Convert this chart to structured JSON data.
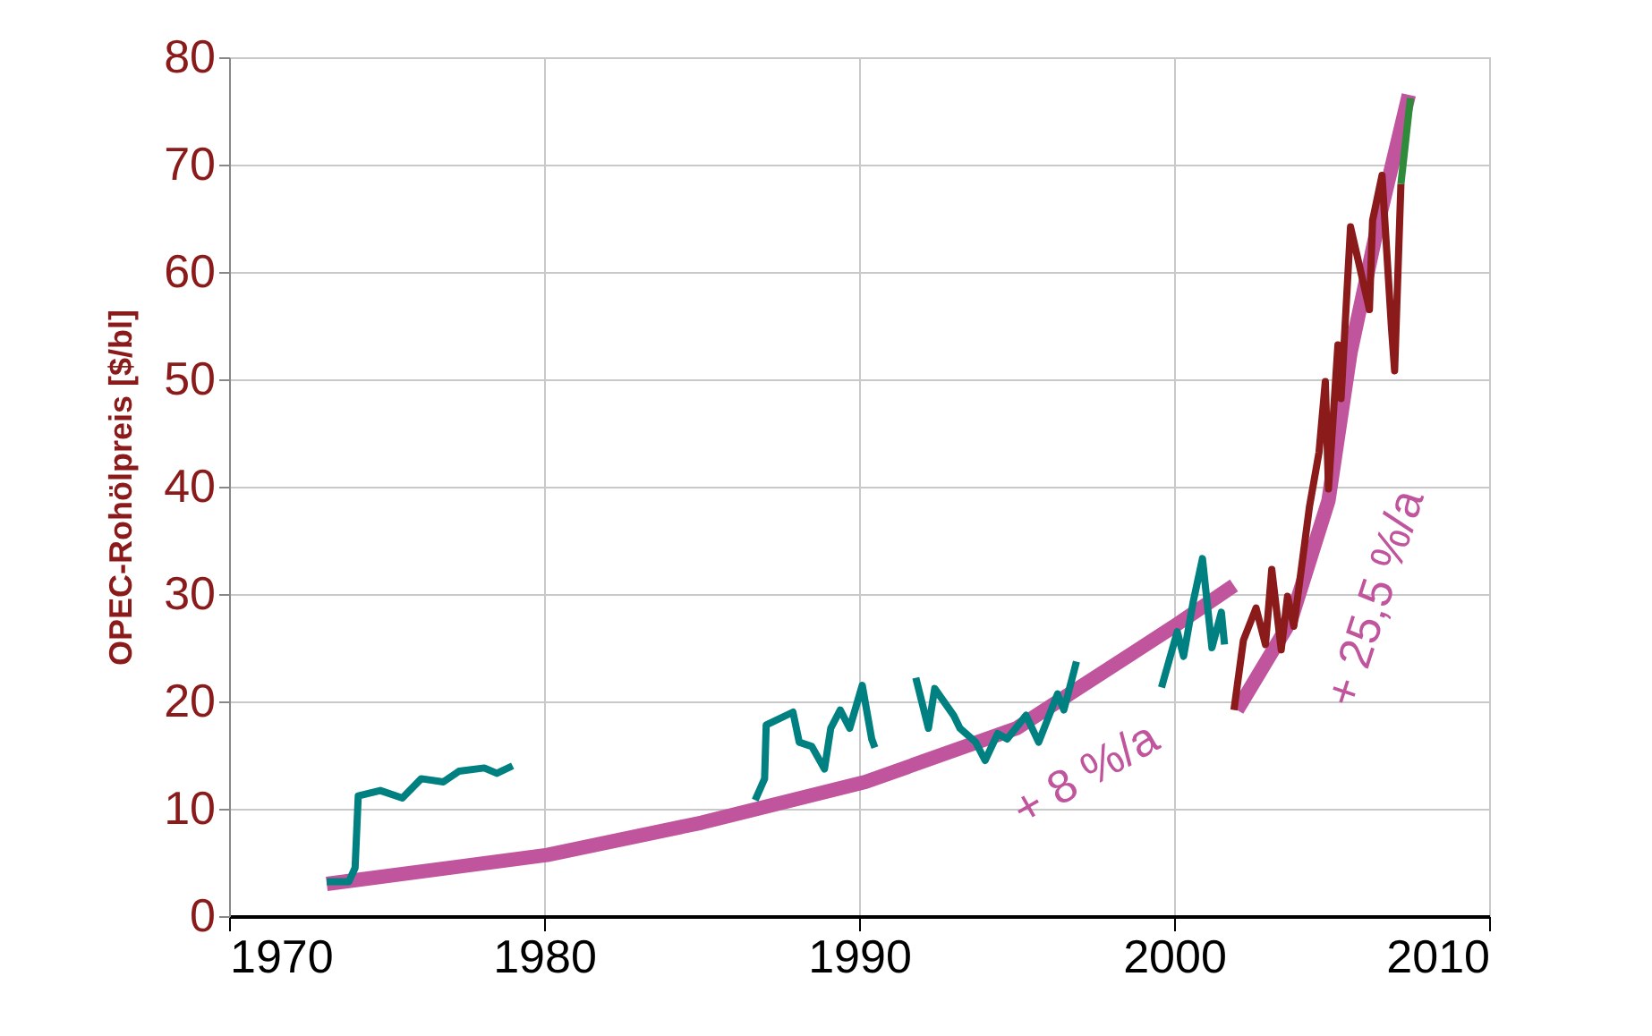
{
  "chart_data": {
    "type": "line",
    "ylabel": "OPEC-Rohölpreis [$/bl]",
    "xlim": [
      1970,
      2010
    ],
    "ylim": [
      0,
      80
    ],
    "xticks": [
      1970,
      1980,
      1990,
      2000,
      2010
    ],
    "yticks": [
      0,
      10,
      20,
      30,
      40,
      50,
      60,
      70,
      80
    ],
    "grid": true,
    "series": [
      {
        "color": "#c0559e",
        "x": [
          1973.1,
          1980.1,
          1985,
          1990.2,
          1995,
          2000,
          2001.9
        ],
        "values": [
          3.0,
          5.7,
          8.7,
          12.5,
          17.5,
          27,
          30.8
        ]
      },
      {
        "color": "#c0559e",
        "x": [
          2002,
          2003.7,
          2004.9,
          2005.6,
          2006.5,
          2007.45
        ],
        "values": [
          19.2,
          27.5,
          38.7,
          52.5,
          64.8,
          76.5
        ]
      },
      {
        "color": "#008080",
        "x": [
          1973.1,
          1973.8,
          1974,
          1974.1,
          1974.8,
          1975.5,
          1976.1,
          1976.8,
          1977.3,
          1978.1,
          1978.5,
          1979,
          1982,
          1986.7,
          1987,
          1987.05,
          1987.9,
          1988.1,
          1988.5,
          1988.9,
          1989.1,
          1989.4,
          1989.7,
          1990.1,
          1990.4,
          1990.5,
          1991.2,
          1991.8,
          1992.2,
          1992.4,
          1993,
          1993.2,
          1993.7,
          1994,
          1994.4,
          1994.7,
          1995.3,
          1995.7,
          1996.3,
          1996.5,
          1996.9,
          1998,
          1999.6,
          2000.1,
          2000.3,
          2000.6,
          2000.9,
          2001.2,
          2001.5,
          2001.6
        ],
        "values": [
          3.2,
          3.2,
          4.5,
          11.2,
          11.7,
          11,
          12.8,
          12.5,
          13.5,
          13.8,
          13.3,
          14,
          null,
          10.8,
          12.8,
          17.8,
          19,
          16.2,
          15.8,
          13.7,
          17.5,
          19.2,
          17.5,
          21.5,
          16.5,
          15.7,
          null,
          22.2,
          17.5,
          21.2,
          18.7,
          17.5,
          16.2,
          14.5,
          17,
          16.5,
          18.7,
          16.2,
          20.7,
          19.2,
          23.7,
          null,
          21.3,
          26.5,
          24.2,
          29.2,
          33.3,
          25,
          28.3,
          25.3
        ]
      },
      {
        "color": "#8b1a1a",
        "x": [
          2001.9,
          2002.2,
          2002.6,
          2002.9,
          2003.1,
          2003.4,
          2003.6,
          2003.8,
          2004.3,
          2004.6,
          2004.8,
          2004.9,
          2005.2,
          2005.3,
          2005.6,
          2006.2,
          2006.3,
          2006.6,
          2006.9,
          2007,
          2007.2
        ],
        "values": [
          19.2,
          25.7,
          28.7,
          25.3,
          32.3,
          24.8,
          29.8,
          27,
          38.2,
          43.2,
          49.8,
          39.8,
          53.2,
          48.2,
          64.2,
          56.5,
          64.8,
          69,
          54.8,
          50.8,
          68.2
        ]
      },
      {
        "color": "#2e8b3a",
        "x": [
          2007.2,
          2007.5
        ],
        "values": [
          68.2,
          76.2
        ]
      }
    ],
    "annotations": [
      "+ 8 %/a",
      "+ 25,5 %/a"
    ]
  }
}
